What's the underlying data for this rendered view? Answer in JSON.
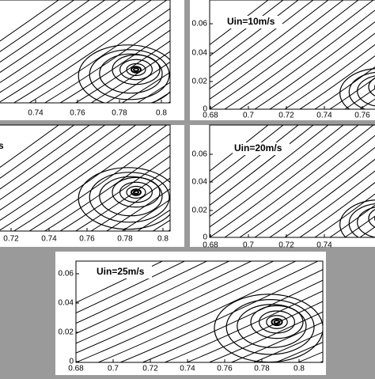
{
  "panels": [
    {
      "xticks": [
        0.74,
        0.76,
        0.78,
        0.8
      ],
      "yticks": []
    },
    {
      "label": "Uin=10m/s",
      "xticks": [
        0.68,
        0.7,
        0.72,
        0.74,
        0.76
      ],
      "yticks": [
        0.06,
        0.04,
        0.02,
        0
      ]
    },
    {
      "label": "s",
      "xticks": [
        0.72,
        0.74,
        0.76,
        0.78,
        0.8
      ],
      "yticks": []
    },
    {
      "label": "Uin=20m/s",
      "xticks": [
        0.68,
        0.7,
        0.72,
        0.74
      ],
      "yticks": [
        0.06,
        0.04,
        0.02,
        0
      ]
    },
    {
      "label": "Uin=25m/s",
      "xticks": [
        0.68,
        0.7,
        0.72,
        0.74,
        0.76,
        0.78,
        0.8
      ],
      "yticks": [
        0.06,
        0.04,
        0.02,
        0
      ]
    }
  ]
}
